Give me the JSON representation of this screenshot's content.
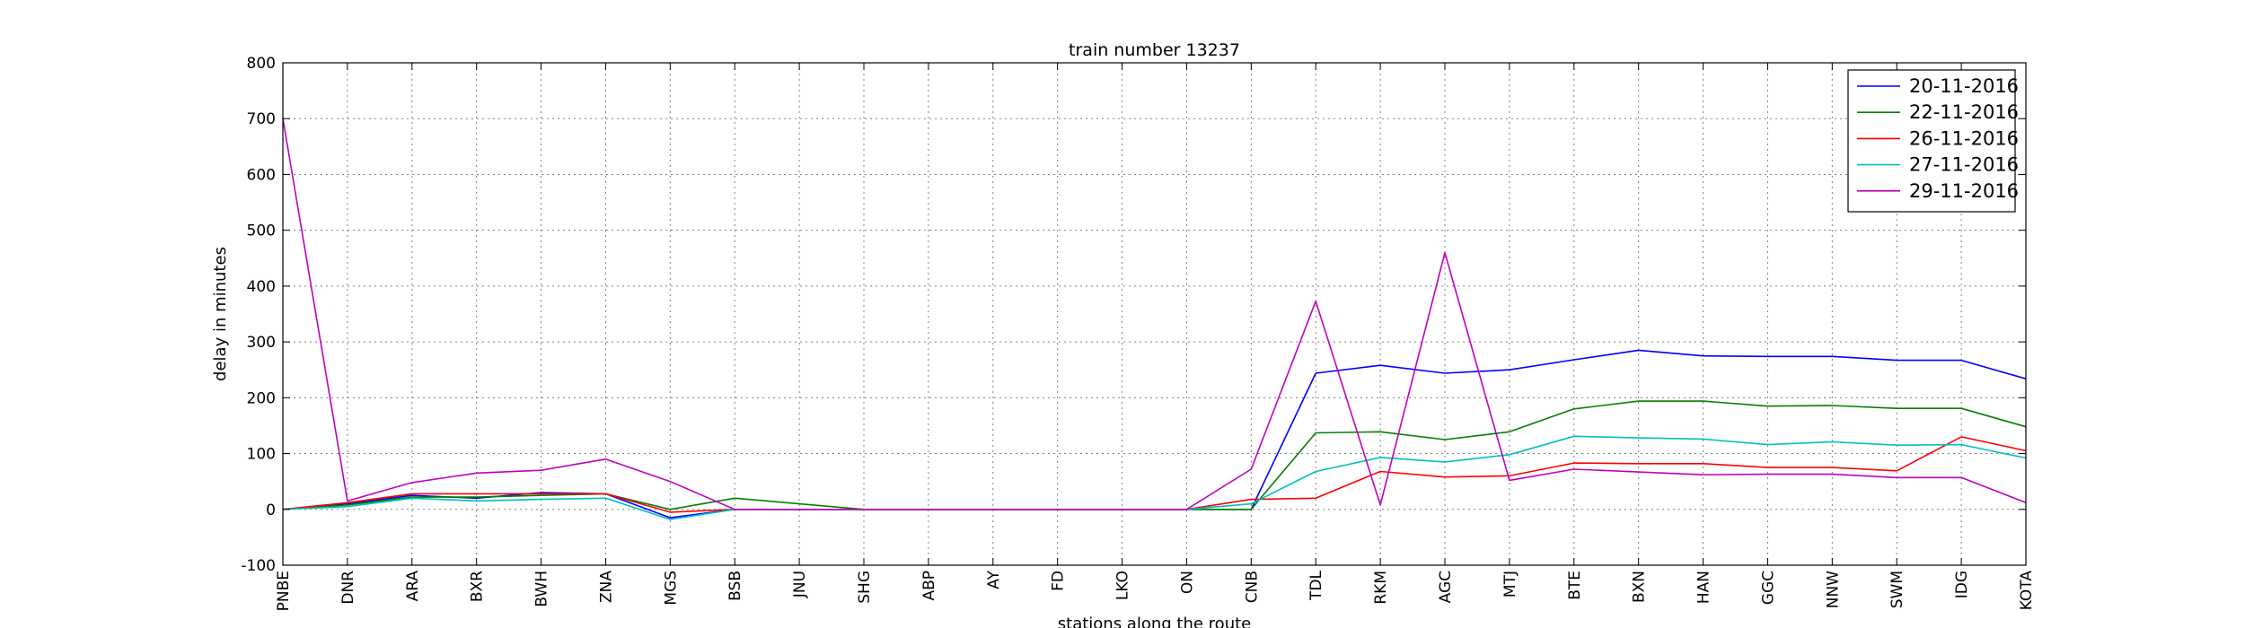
{
  "chart_data": {
    "type": "line",
    "title": "train number 13237",
    "xlabel": "stations along the route",
    "ylabel": "delay in minutes",
    "ylim": [
      -100,
      800
    ],
    "yticks": [
      -100,
      0,
      100,
      200,
      300,
      400,
      500,
      600,
      700,
      800
    ],
    "grid": true,
    "legend_position": "top-right",
    "categories": [
      "PNBE",
      "DNR",
      "ARA",
      "BXR",
      "BWH",
      "ZNA",
      "MGS",
      "BSB",
      "JNU",
      "SHG",
      "ABP",
      "AY",
      "FD",
      "LKO",
      "ON",
      "CNB",
      "TDL",
      "RKM",
      "AGC",
      "MTJ",
      "BTE",
      "BXN",
      "HAN",
      "GGC",
      "NNW",
      "SWM",
      "IDG",
      "KOTA"
    ],
    "series": [
      {
        "name": "20-11-2016",
        "color": "#0000ff",
        "values": [
          0,
          10,
          25,
          20,
          30,
          28,
          -15,
          0,
          0,
          0,
          0,
          0,
          0,
          0,
          0,
          0,
          244,
          258,
          244,
          250,
          268,
          285,
          275,
          274,
          274,
          267,
          267,
          234
        ]
      },
      {
        "name": "22-11-2016",
        "color": "#008000",
        "values": [
          0,
          8,
          22,
          22,
          25,
          28,
          0,
          20,
          10,
          0,
          0,
          0,
          0,
          0,
          0,
          0,
          137,
          139,
          125,
          139,
          180,
          194,
          194,
          185,
          186,
          181,
          181,
          148
        ]
      },
      {
        "name": "26-11-2016",
        "color": "#ff0000",
        "values": [
          0,
          12,
          28,
          28,
          28,
          28,
          -5,
          0,
          0,
          0,
          0,
          0,
          0,
          0,
          0,
          18,
          20,
          68,
          58,
          60,
          83,
          82,
          82,
          75,
          75,
          69,
          130,
          105
        ]
      },
      {
        "name": "27-11-2016",
        "color": "#00bfbf",
        "values": [
          0,
          5,
          20,
          15,
          18,
          20,
          -18,
          0,
          0,
          0,
          0,
          0,
          0,
          0,
          0,
          10,
          68,
          93,
          85,
          98,
          131,
          128,
          126,
          116,
          121,
          115,
          116,
          92
        ]
      },
      {
        "name": "29-11-2016",
        "color": "#bf00bf",
        "values": [
          700,
          15,
          48,
          65,
          70,
          90,
          50,
          0,
          0,
          0,
          0,
          0,
          0,
          0,
          0,
          72,
          373,
          8,
          460,
          52,
          72,
          67,
          62,
          63,
          63,
          57,
          57,
          12
        ]
      }
    ]
  }
}
